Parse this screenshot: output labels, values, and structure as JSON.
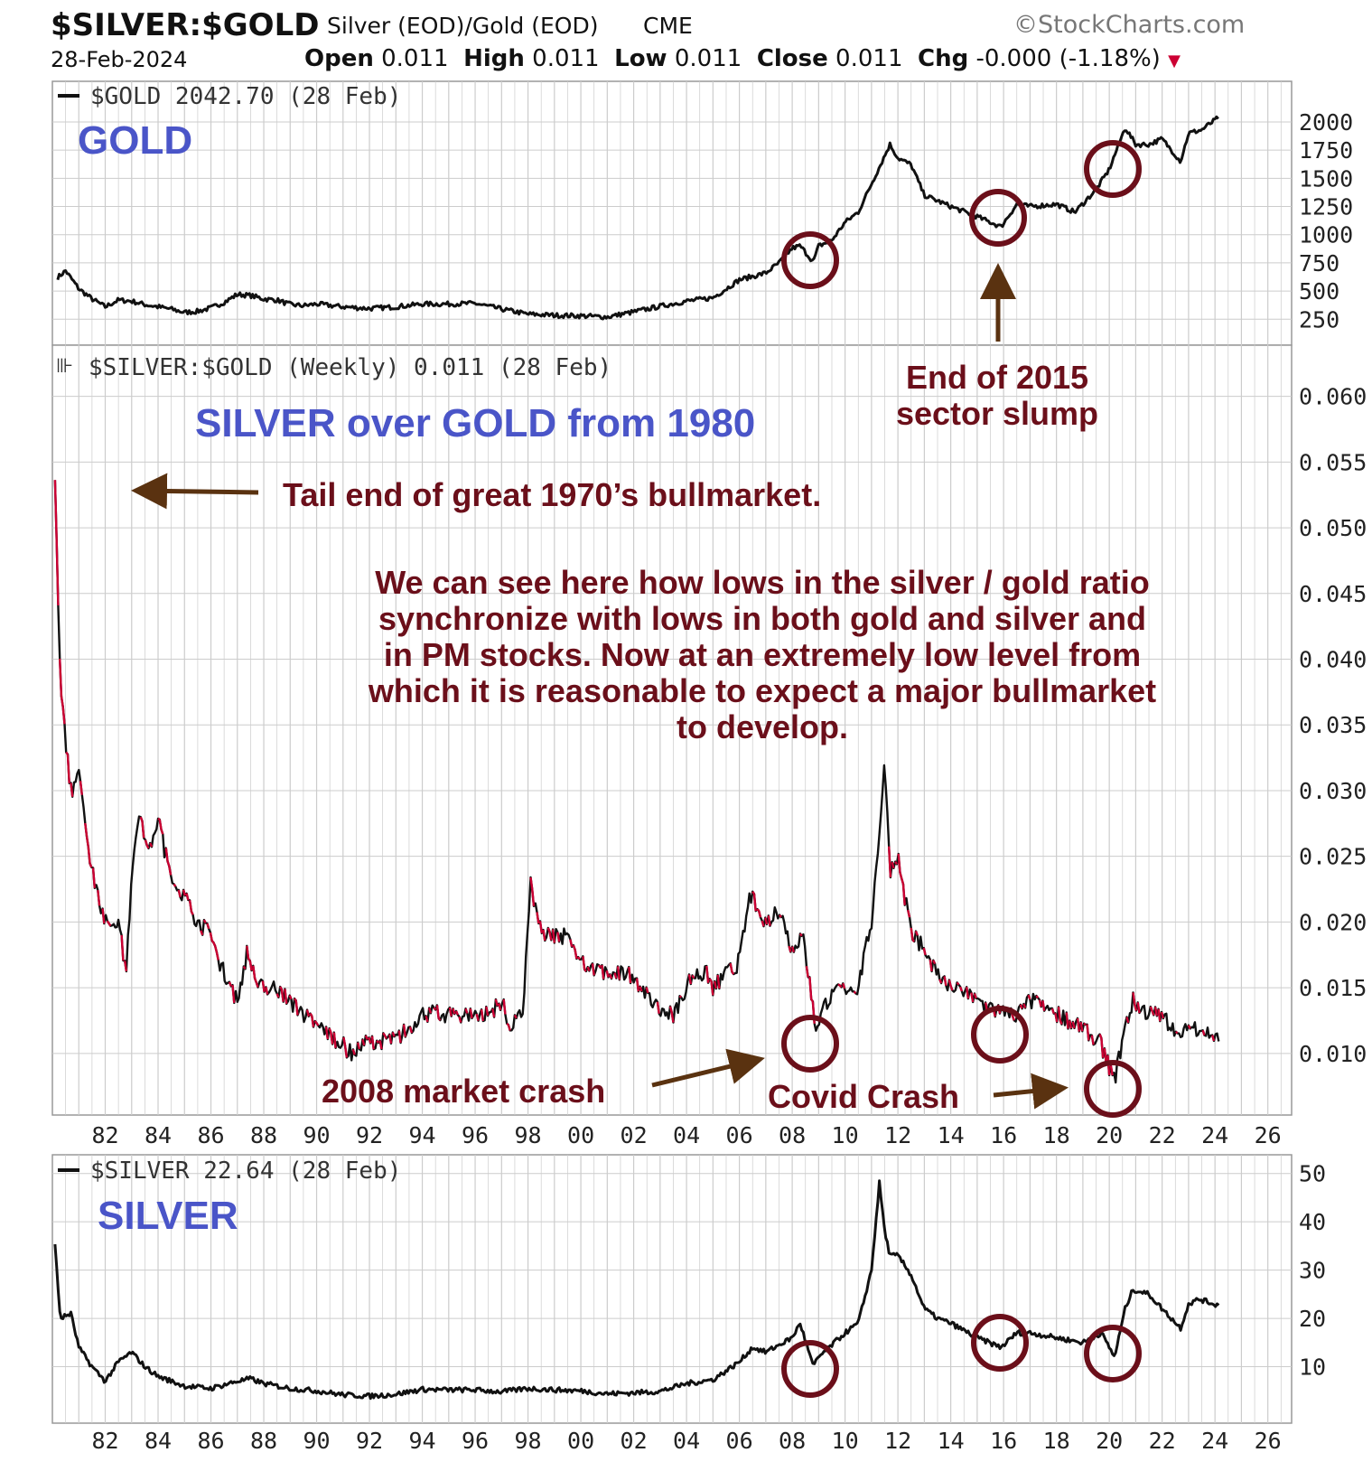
{
  "header": {
    "symbol": "$SILVER:$GOLD",
    "description": "Silver (EOD)/Gold (EOD)",
    "exchange": "CME",
    "watermark": "©StockCharts.com",
    "date": "28-Feb-2024",
    "open_label": "Open",
    "open_value": "0.011",
    "high_label": "High",
    "high_value": "0.011",
    "low_label": "Low",
    "low_value": "0.011",
    "close_label": "Close",
    "close_value": "0.011",
    "chg_label": "Chg",
    "chg_value": "-0.000 (-1.18%)"
  },
  "colors": {
    "series": "#111111",
    "down_bar": "#cc0033",
    "annotation": "#6b0f1a",
    "arrow": "#5a3210",
    "panel_title": "#4a55c8",
    "grid": "#cccccc"
  },
  "x_axis": {
    "ticks": [
      "82",
      "84",
      "86",
      "88",
      "90",
      "92",
      "94",
      "96",
      "98",
      "00",
      "02",
      "04",
      "06",
      "08",
      "10",
      "12",
      "14",
      "16",
      "18",
      "20",
      "22",
      "24",
      "26"
    ]
  },
  "chart_data": [
    {
      "type": "line",
      "legend": "$GOLD 2042.70 (28 Feb)",
      "panel_title": "GOLD",
      "yticks": [
        "2000",
        "1750",
        "1500",
        "1250",
        "1000",
        "750",
        "500",
        "250"
      ],
      "ylim": [
        100,
        2200
      ],
      "x": [
        1980.2,
        1980.5,
        1981,
        1981.5,
        1982,
        1982.5,
        1983,
        1983.5,
        1984,
        1984.5,
        1985,
        1985.5,
        1986,
        1986.5,
        1987,
        1987.5,
        1988,
        1988.5,
        1989,
        1989.5,
        1990,
        1991,
        1992,
        1993,
        1994,
        1995,
        1996,
        1997,
        1998,
        1999,
        2000,
        2001,
        2002,
        2003,
        2004,
        2005,
        2006,
        2006.5,
        2007,
        2007.5,
        2008,
        2008.3,
        2008.8,
        2009,
        2009.5,
        2010,
        2010.5,
        2011,
        2011.5,
        2011.7,
        2012,
        2012.5,
        2013,
        2013.5,
        2014,
        2015,
        2015.9,
        2016.5,
        2017,
        2018,
        2018.7,
        2019.5,
        2020,
        2020.6,
        2021,
        2021.5,
        2022,
        2022.7,
        2023,
        2023.5,
        2024.15
      ],
      "values": [
        620,
        680,
        520,
        430,
        360,
        420,
        410,
        380,
        360,
        340,
        310,
        320,
        350,
        400,
        470,
        460,
        430,
        420,
        380,
        370,
        385,
        360,
        345,
        360,
        385,
        385,
        390,
        340,
        295,
        285,
        280,
        270,
        315,
        365,
        410,
        440,
        600,
        630,
        660,
        750,
        880,
        900,
        760,
        900,
        950,
        1110,
        1200,
        1450,
        1700,
        1800,
        1680,
        1620,
        1350,
        1300,
        1250,
        1160,
        1070,
        1270,
        1250,
        1270,
        1200,
        1400,
        1580,
        1950,
        1800,
        1800,
        1850,
        1650,
        1900,
        1930,
        2042.7
      ]
    },
    {
      "type": "line",
      "legend": "$SILVER:$GOLD (Weekly) 0.011 (28 Feb)",
      "panel_title": "SILVER over GOLD from 1980",
      "yticks": [
        "0.060",
        "0.055",
        "0.050",
        "0.045",
        "0.040",
        "0.035",
        "0.030",
        "0.025",
        "0.020",
        "0.015",
        "0.010"
      ],
      "ylim": [
        0.006,
        0.063
      ],
      "x": [
        1980.1,
        1980.3,
        1980.7,
        1981,
        1981.5,
        1982,
        1982.5,
        1982.8,
        1983,
        1983.3,
        1983.6,
        1984,
        1984.5,
        1985,
        1985.5,
        1986,
        1986.5,
        1987,
        1987.4,
        1987.8,
        1988.5,
        1989,
        1990,
        1990.8,
        1991.3,
        1992,
        1993,
        1993.5,
        1994,
        1995,
        1996,
        1996.5,
        1997,
        1997.3,
        1997.8,
        1998.1,
        1998.5,
        1999,
        1999.5,
        2000,
        2001,
        2002,
        2002.6,
        2003,
        2003.5,
        2004.2,
        2004.8,
        2005,
        2006,
        2006.4,
        2007,
        2007.5,
        2008,
        2008.4,
        2008.9,
        2009.3,
        2010,
        2010.5,
        2011,
        2011.3,
        2011.5,
        2011.7,
        2012,
        2012.5,
        2013,
        2013.5,
        2014,
        2015,
        2015.9,
        2016.5,
        2017,
        2018,
        2019,
        2019.6,
        2020.2,
        2020.6,
        2020.9,
        2021.5,
        2022,
        2022.7,
        2023,
        2023.4,
        2024.15
      ],
      "values": [
        0.053,
        0.038,
        0.03,
        0.031,
        0.024,
        0.02,
        0.02,
        0.016,
        0.024,
        0.029,
        0.025,
        0.028,
        0.023,
        0.022,
        0.02,
        0.019,
        0.016,
        0.014,
        0.018,
        0.015,
        0.015,
        0.014,
        0.012,
        0.011,
        0.01,
        0.011,
        0.011,
        0.012,
        0.013,
        0.013,
        0.013,
        0.013,
        0.014,
        0.012,
        0.013,
        0.023,
        0.019,
        0.019,
        0.019,
        0.017,
        0.016,
        0.016,
        0.014,
        0.013,
        0.013,
        0.016,
        0.016,
        0.015,
        0.017,
        0.022,
        0.02,
        0.021,
        0.018,
        0.019,
        0.012,
        0.014,
        0.015,
        0.015,
        0.02,
        0.027,
        0.032,
        0.024,
        0.025,
        0.019,
        0.018,
        0.016,
        0.015,
        0.014,
        0.013,
        0.013,
        0.014,
        0.013,
        0.012,
        0.011,
        0.008,
        0.012,
        0.014,
        0.013,
        0.013,
        0.011,
        0.012,
        0.012,
        0.011
      ]
    },
    {
      "type": "line",
      "legend": "$SILVER 22.64 (28 Feb)",
      "panel_title": "SILVER",
      "yticks": [
        "50",
        "40",
        "30",
        "20",
        "10"
      ],
      "ylim": [
        0,
        52
      ],
      "x": [
        1980.1,
        1980.3,
        1980.7,
        1981,
        1981.5,
        1982,
        1982.5,
        1983,
        1983.5,
        1984,
        1985,
        1986,
        1987,
        1987.5,
        1988,
        1989,
        1990,
        1991,
        1992,
        1993,
        1994,
        1995,
        1996,
        1997,
        1998,
        1999,
        2000,
        2001,
        2002,
        2003,
        2004,
        2005,
        2006,
        2006.5,
        2007,
        2008,
        2008.3,
        2008.8,
        2009,
        2009.5,
        2010,
        2010.5,
        2011,
        2011.3,
        2011.5,
        2011.7,
        2012,
        2012.5,
        2013,
        2013.5,
        2014,
        2015,
        2015.9,
        2016.5,
        2017,
        2018,
        2019,
        2019.7,
        2020.2,
        2020.6,
        2020.9,
        2021.5,
        2022,
        2022.7,
        2023,
        2023.4,
        2024.15
      ],
      "values": [
        35,
        20,
        21,
        14,
        10,
        7,
        11,
        13,
        10,
        8,
        6,
        5.5,
        7,
        7.5,
        6.5,
        5.5,
        5,
        4.2,
        3.9,
        4.3,
        5.3,
        5.2,
        5.2,
        4.8,
        5.5,
        5.2,
        5,
        4.4,
        4.6,
        4.9,
        6.5,
        7.3,
        11,
        14,
        13,
        16,
        19,
        10,
        12,
        14.5,
        17,
        19,
        30,
        48,
        38,
        33,
        33,
        29,
        22,
        20,
        19,
        16,
        14,
        17,
        17,
        16,
        15,
        17,
        12,
        22,
        26,
        25,
        22,
        18,
        23,
        24,
        22.64
      ]
    }
  ],
  "annotations": {
    "sector_slump": "End of 2015\nsector slump",
    "tail_end": "Tail end of great 1970’s bullmarket.",
    "main_note": "We can see here how lows in the silver / gold ratio\nsynchronize with lows in both gold and silver and\nin PM stocks. Now at an extremely low level from\nwhich it is reasonable to expect a major bullmarket\nto develop.",
    "crash_2008": "2008 market crash",
    "covid_crash": "Covid Crash"
  }
}
